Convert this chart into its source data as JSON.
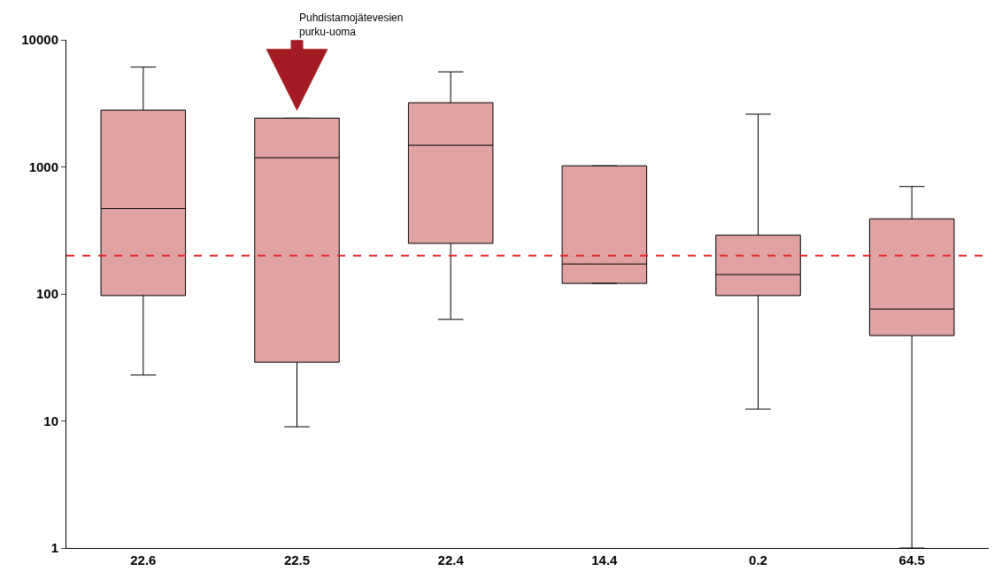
{
  "chart_data": {
    "type": "box",
    "categories": [
      "22.6",
      "22.5",
      "22.4",
      "14.4",
      "0.2",
      "64.5"
    ],
    "boxes": [
      {
        "low": 23,
        "q1": 97,
        "median": 470,
        "q3": 2800,
        "high": 6100
      },
      {
        "low": 9,
        "q1": 29,
        "median": 1180,
        "q3": 2420,
        "high": 2420
      },
      {
        "low": 63,
        "q1": 250,
        "median": 1480,
        "q3": 3200,
        "high": 5600
      },
      {
        "low": 121,
        "q1": 121,
        "median": 172,
        "q3": 1020,
        "high": 1020
      },
      {
        "low": 12.4,
        "q1": 97,
        "median": 142,
        "q3": 290,
        "high": 2600
      },
      {
        "low": 1,
        "q1": 47,
        "median": 76,
        "q3": 390,
        "high": 700
      }
    ],
    "color": "#e0a3a1",
    "log": true,
    "ylim": [
      1,
      10000
    ],
    "yticks": [
      1,
      10,
      100,
      1000,
      10000
    ],
    "legend": false,
    "ref_lines": [
      {
        "axis": "y",
        "value": 200,
        "color": "#e8262a",
        "line_style": "dashed"
      }
    ],
    "annotations": [
      "Puhdistamojätevesien\npurku-uoma"
    ]
  }
}
